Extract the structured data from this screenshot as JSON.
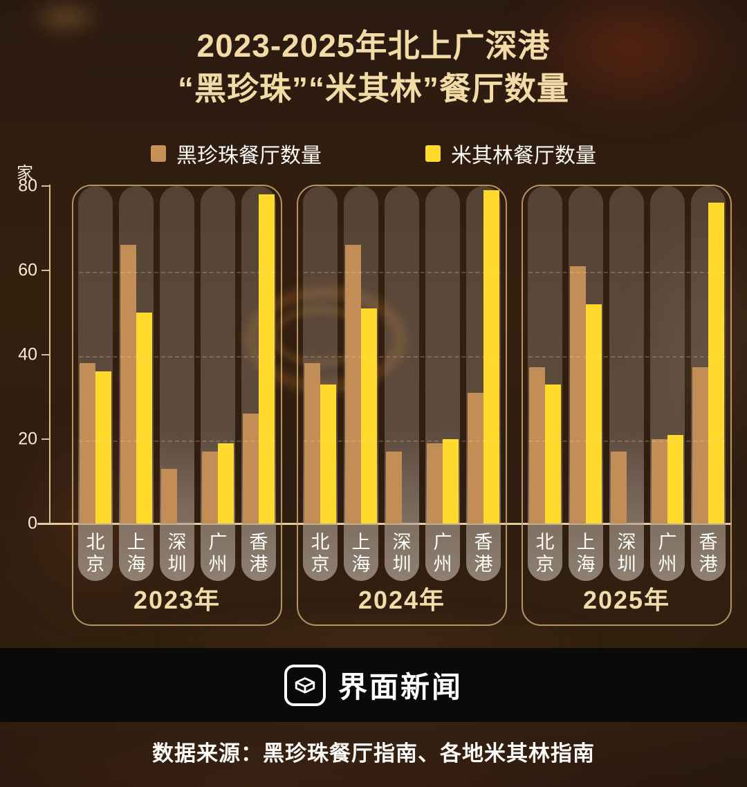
{
  "title": {
    "line1": "2023-2025年北上广深港",
    "line2": "“黑珍珠”“米其林”餐厅数量"
  },
  "legend": [
    {
      "label": "黑珍珠餐厅数量",
      "color": "#c89157"
    },
    {
      "label": "米其林餐厅数量",
      "color": "#ffd92b"
    }
  ],
  "y_axis": {
    "unit": "家",
    "ticks": [
      80,
      60,
      40,
      20,
      0
    ]
  },
  "chart_data": {
    "type": "bar",
    "title": "2023-2025年北上广深港“黑珍珠”“米其林”餐厅数量",
    "ylabel": "家",
    "ylim": [
      0,
      80
    ],
    "gridlines": [
      20,
      40,
      60
    ],
    "legend_position": "top",
    "series_names": [
      "黑珍珠餐厅数量",
      "米其林餐厅数量"
    ],
    "series_colors": {
      "black_pearl": "#c28e55",
      "michelin": "#ffd92b"
    },
    "groups": [
      {
        "year": "2023年",
        "values": [
          {
            "city": "北京",
            "black_pearl": 38,
            "michelin": 36
          },
          {
            "city": "上海",
            "black_pearl": 66,
            "michelin": 50
          },
          {
            "city": "深圳",
            "black_pearl": 13,
            "michelin": null
          },
          {
            "city": "广州",
            "black_pearl": 17,
            "michelin": 19
          },
          {
            "city": "香港",
            "black_pearl": 26,
            "michelin": 78
          }
        ]
      },
      {
        "year": "2024年",
        "values": [
          {
            "city": "北京",
            "black_pearl": 38,
            "michelin": 33
          },
          {
            "city": "上海",
            "black_pearl": 66,
            "michelin": 51
          },
          {
            "city": "深圳",
            "black_pearl": 17,
            "michelin": null
          },
          {
            "city": "广州",
            "black_pearl": 19,
            "michelin": 20
          },
          {
            "city": "香港",
            "black_pearl": 31,
            "michelin": 79
          }
        ]
      },
      {
        "year": "2025年",
        "values": [
          {
            "city": "北京",
            "black_pearl": 37,
            "michelin": 33
          },
          {
            "city": "上海",
            "black_pearl": 61,
            "michelin": 52
          },
          {
            "city": "深圳",
            "black_pearl": 17,
            "michelin": null
          },
          {
            "city": "广州",
            "black_pearl": 20,
            "michelin": 21
          },
          {
            "city": "香港",
            "black_pearl": 37,
            "michelin": 76
          }
        ]
      }
    ]
  },
  "footer": {
    "brand": "界面新闻",
    "source": "数据来源：黑珍珠餐厅指南、各地米其林指南"
  }
}
